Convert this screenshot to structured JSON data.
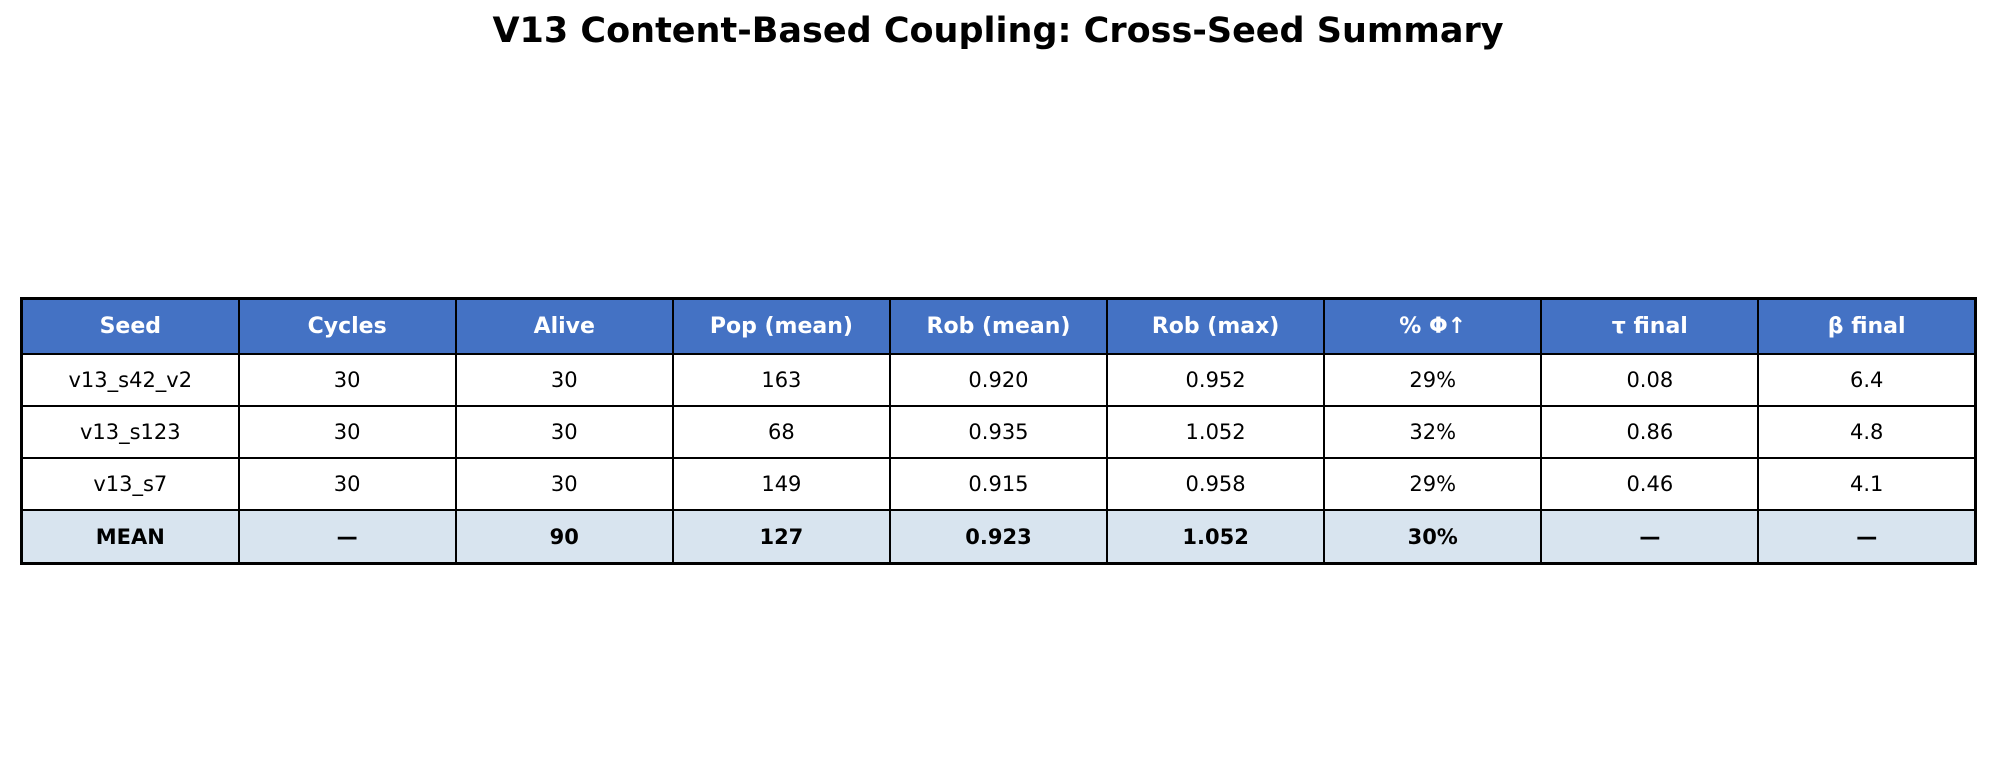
{
  "chart_data": {
    "type": "table",
    "title": "V13 Content-Based Coupling: Cross-Seed Summary",
    "columns": [
      "Seed",
      "Cycles",
      "Alive",
      "Pop (mean)",
      "Rob (mean)",
      "Rob (max)",
      "% Φ↑",
      "τ final",
      "β final"
    ],
    "rows": [
      [
        "v13_s42_v2",
        "30",
        "30",
        "163",
        "0.920",
        "0.952",
        "29%",
        "0.08",
        "6.4"
      ],
      [
        "v13_s123",
        "30",
        "30",
        "68",
        "0.935",
        "1.052",
        "32%",
        "0.86",
        "4.8"
      ],
      [
        "v13_s7",
        "30",
        "30",
        "149",
        "0.915",
        "0.958",
        "29%",
        "0.46",
        "4.1"
      ]
    ],
    "summary_row": [
      "MEAN",
      "—",
      "90",
      "127",
      "0.923",
      "1.052",
      "30%",
      "—",
      "—"
    ]
  },
  "colors": {
    "header_bg": "#4472C4",
    "header_text": "#FFFFFF",
    "cell_bg": "#FFFFFF",
    "summary_bg": "#D8E4EF",
    "border": "#000000"
  }
}
